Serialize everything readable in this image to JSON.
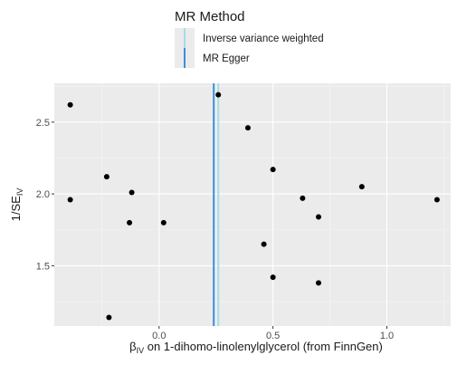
{
  "chart_data": {
    "type": "scatter",
    "legend": {
      "title": "MR Method",
      "placement": "top",
      "entries": [
        {
          "label": "Inverse variance weighted",
          "color": "#a6dce8"
        },
        {
          "label": "MR Egger",
          "color": "#3c8fdc"
        }
      ]
    },
    "xlabel": {
      "prefix": "β",
      "sub": "IV",
      "text": " on 1-dihomo-linolenylglycerol (from FinnGen)"
    },
    "ylabel": {
      "prefix": "1/SE",
      "sub": "IV"
    },
    "xlim": [
      -0.46,
      1.28
    ],
    "ylim": [
      1.08,
      2.77
    ],
    "xticks": [
      {
        "value": 0.0,
        "label": "0.0"
      },
      {
        "value": 0.5,
        "label": "0.5"
      },
      {
        "value": 1.0,
        "label": "1.0"
      }
    ],
    "yticks": [
      {
        "value": 1.5,
        "label": "1.5"
      },
      {
        "value": 2.0,
        "label": "2.0"
      },
      {
        "value": 2.5,
        "label": "2.5"
      }
    ],
    "grid": true,
    "vlines": [
      {
        "method": "Inverse variance weighted",
        "x": 0.26,
        "color": "#a6dce8"
      },
      {
        "method": "MR Egger",
        "x": 0.24,
        "color": "#3c8fdc"
      }
    ],
    "points": [
      {
        "x": -0.39,
        "y": 2.62
      },
      {
        "x": 0.26,
        "y": 2.69
      },
      {
        "x": 0.39,
        "y": 2.46
      },
      {
        "x": 0.5,
        "y": 2.17
      },
      {
        "x": -0.23,
        "y": 2.12
      },
      {
        "x": -0.12,
        "y": 2.01
      },
      {
        "x": -0.39,
        "y": 1.96
      },
      {
        "x": 0.89,
        "y": 2.05
      },
      {
        "x": 1.22,
        "y": 1.96
      },
      {
        "x": 0.63,
        "y": 1.97
      },
      {
        "x": 0.7,
        "y": 1.84
      },
      {
        "x": -0.13,
        "y": 1.8
      },
      {
        "x": 0.02,
        "y": 1.8
      },
      {
        "x": 0.46,
        "y": 1.65
      },
      {
        "x": 0.5,
        "y": 1.42
      },
      {
        "x": 0.7,
        "y": 1.38
      },
      {
        "x": -0.22,
        "y": 1.14
      }
    ]
  }
}
